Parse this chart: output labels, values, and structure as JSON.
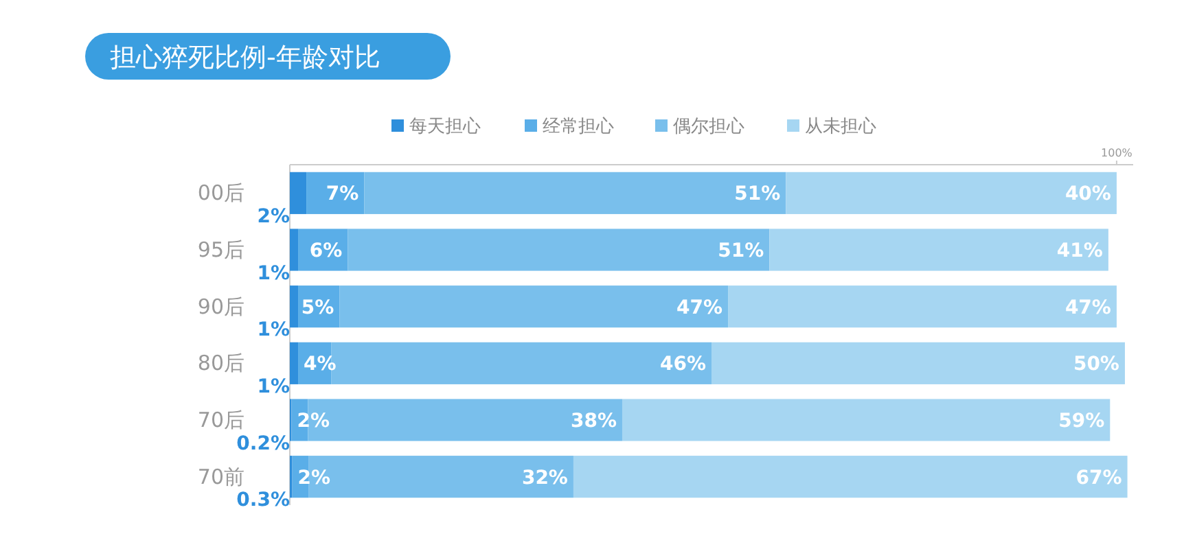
{
  "chart_data": {
    "type": "bar",
    "title": "担心猝死比例-年龄对比",
    "orientation": "horizontal",
    "stacked": true,
    "legend": "top",
    "categories": [
      "00后",
      "95后",
      "90后",
      "80后",
      "70后",
      "70前"
    ],
    "xlim": [
      0,
      102
    ],
    "xticks": [
      {
        "value": 100,
        "label": "100%"
      }
    ],
    "series": [
      {
        "name": "每天担心",
        "color": "#2f8fdc",
        "values": [
          2,
          1,
          1,
          1,
          0.2,
          0.3
        ],
        "value_labels": [
          "2%",
          "1%",
          "1%",
          "1%",
          "0.2%",
          "0.3%"
        ]
      },
      {
        "name": "经常担心",
        "color": "#5aaee8",
        "values": [
          7,
          6,
          5,
          4,
          2,
          2
        ],
        "value_labels": [
          "7%",
          "6%",
          "5%",
          "4%",
          "2%",
          "2%"
        ]
      },
      {
        "name": "偶尔担心",
        "color": "#79bfec",
        "values": [
          51,
          51,
          47,
          46,
          38,
          32
        ],
        "value_labels": [
          "51%",
          "51%",
          "47%",
          "46%",
          "38%",
          "32%"
        ]
      },
      {
        "name": "从未担心",
        "color": "#a6d6f2",
        "values": [
          40,
          41,
          47,
          50,
          59,
          67
        ],
        "value_labels": [
          "40%",
          "41%",
          "47%",
          "50%",
          "59%",
          "67%"
        ]
      }
    ]
  }
}
